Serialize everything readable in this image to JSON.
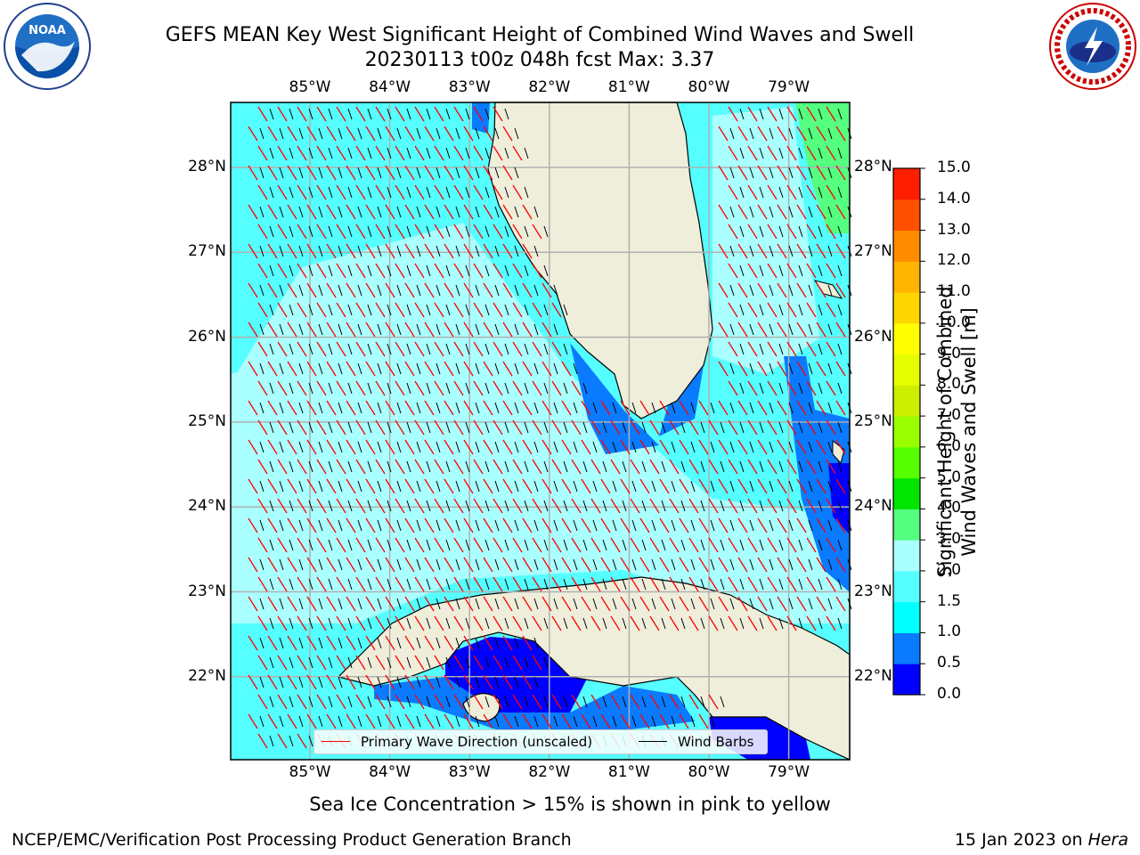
{
  "header": {
    "title_line1": "GEFS MEAN Key West Significant Height of Combined Wind Waves and Swell",
    "title_line2": "20230113 t00z 048h fcst   Max: 3.37"
  },
  "logos": {
    "left": "noaa-logo",
    "left_text": "NOAA",
    "right": "nws-logo",
    "right_text": "NATIONAL WEATHER SERVICE"
  },
  "map": {
    "lon_ticks": [
      "85°W",
      "84°W",
      "83°W",
      "82°W",
      "81°W",
      "80°W",
      "79°W"
    ],
    "lat_ticks": [
      "28°N",
      "27°N",
      "26°N",
      "25°N",
      "24°N",
      "23°N",
      "22°N"
    ],
    "land_color": "#efeedb",
    "grid_color": "#b0b0b0"
  },
  "legend": {
    "wave_label": "Primary Wave Direction (unscaled)",
    "wave_color": "#ff0000",
    "barb_label": "Wind Barbs",
    "barb_color": "#000000"
  },
  "colorbar": {
    "label_line1": "Significant Height of Combined",
    "label_line2": "Wind Waves and Swell [m]",
    "ticks": [
      "0.0",
      "0.5",
      "1.0",
      "1.5",
      "2.0",
      "3.0",
      "4.0",
      "5.0",
      "6.0",
      "7.0",
      "8.0",
      "9.0",
      "10.0",
      "11.0",
      "12.0",
      "13.0",
      "14.0",
      "15.0"
    ],
    "colors": [
      "#0000ff",
      "#0a7aff",
      "#00ffff",
      "#55ffff",
      "#aaffff",
      "#55ff80",
      "#00e600",
      "#55ff00",
      "#99ff00",
      "#ccee00",
      "#e6ff00",
      "#ffff00",
      "#ffd700",
      "#ffb400",
      "#ff8c00",
      "#ff5000",
      "#ff1e00"
    ]
  },
  "footer": {
    "note": "Sea Ice Concentration > 15% is shown in pink to yellow",
    "left": "NCEP/EMC/Verification Post Processing Product Generation Branch",
    "right_prefix": "15 Jan 2023 on ",
    "right_host": "Hera"
  }
}
